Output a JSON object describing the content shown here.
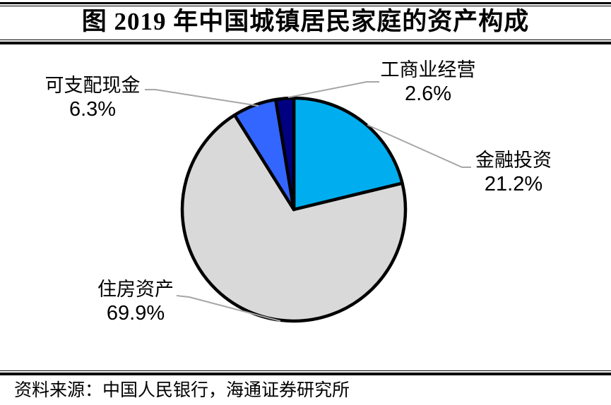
{
  "title": "图  2019 年中国城镇居民家庭的资产构成",
  "source": "资料来源：中国人民银行，海通证券研究所",
  "chart_data": {
    "type": "pie",
    "title": "2019 年中国城镇居民家庭的资产构成",
    "unit": "%",
    "start_angle_deg": 0,
    "direction": "clockwise",
    "legend": "none",
    "labels_position": "outside-with-leader-lines",
    "stroke_color": "#000000",
    "leader_line_color": "#A6A6A6",
    "slices": [
      {
        "id": "financial-investment",
        "label": "金融投资",
        "value": 21.2,
        "pct_label": "21.2%",
        "color": "#00AEEF"
      },
      {
        "id": "housing-assets",
        "label": "住房资产",
        "value": 69.9,
        "pct_label": "69.9%",
        "color": "#D9D9D9"
      },
      {
        "id": "disposable-cash",
        "label": "可支配现金",
        "value": 6.3,
        "pct_label": "6.3%",
        "color": "#3366FF"
      },
      {
        "id": "business-operation",
        "label": "工商业经营",
        "value": 2.6,
        "pct_label": "2.6%",
        "color": "#000080"
      }
    ]
  }
}
